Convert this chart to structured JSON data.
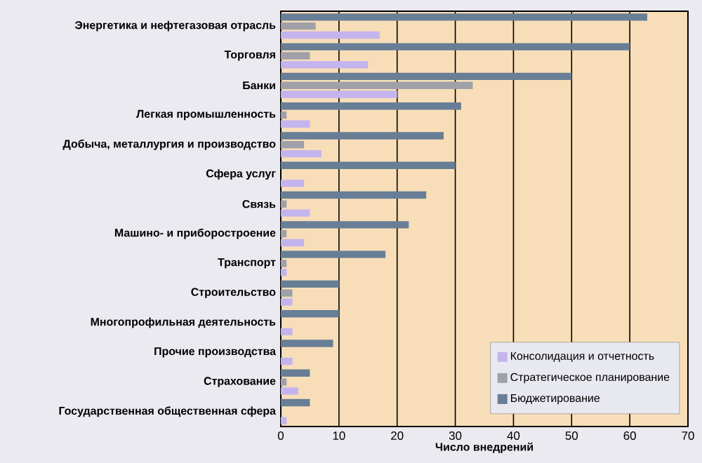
{
  "chart_data": {
    "type": "bar",
    "orientation": "horizontal",
    "xlabel": "Число внедрений",
    "categories": [
      "Энергетика и нефтегазовая отрасль",
      "Торговля",
      "Банки",
      "Легкая промышленность",
      "Добыча, металлургия и производство",
      "Сфера услуг",
      "Связь",
      "Машино- и приборостроение",
      "Транспорт",
      "Строительство",
      "Многопрофильная деятельность",
      "Прочие производства",
      "Страхование",
      "Государственная общественная сфера"
    ],
    "series": [
      {
        "name": "Консолидация и отчетность",
        "color": "#c4b4ee",
        "values": [
          17,
          15,
          20,
          5,
          7,
          4,
          5,
          4,
          1,
          2,
          2,
          2,
          3,
          1
        ]
      },
      {
        "name": "Стратегическое планирование",
        "color": "#a0a0a8",
        "values": [
          6,
          5,
          33,
          1,
          4,
          0,
          1,
          1,
          1,
          2,
          0,
          0,
          1,
          0
        ]
      },
      {
        "name": "Бюджетирование",
        "color": "#687e96",
        "values": [
          63,
          60,
          50,
          31,
          28,
          30,
          25,
          22,
          18,
          10,
          10,
          9,
          5,
          5
        ]
      }
    ],
    "xlim": [
      0,
      70
    ],
    "xticks": [
      0,
      10,
      20,
      30,
      40,
      50,
      60,
      70
    ],
    "grid": "x",
    "legend": "bottom right"
  }
}
